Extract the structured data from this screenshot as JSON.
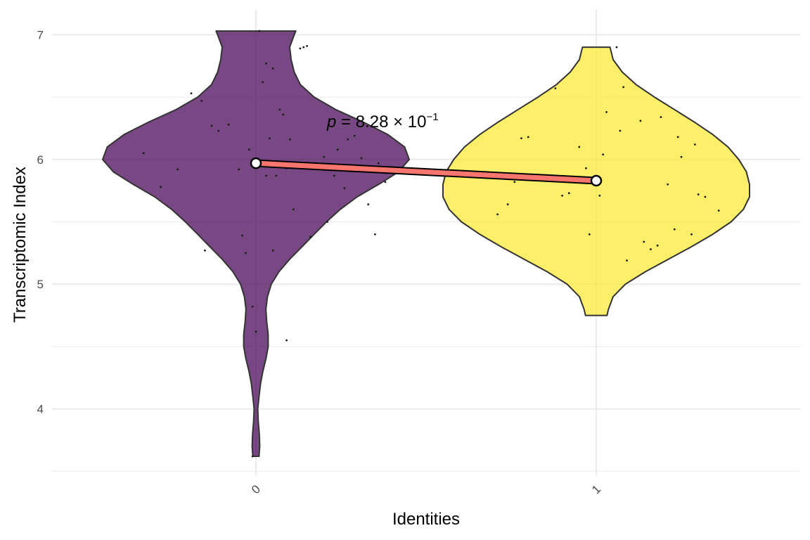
{
  "chart_data": {
    "type": "violin",
    "xlabel": "Identities",
    "ylabel": "Transcriptomic Index",
    "categories": [
      "0",
      "1"
    ],
    "ylim": [
      3.5,
      7.1
    ],
    "yticks": [
      4,
      5,
      6,
      7
    ],
    "y_minor_ticks": [
      3.5,
      4.5,
      5.5,
      6.5
    ],
    "grid": true,
    "x_tick_rotation": -45,
    "annotation": {
      "p_mantissa": "8.28",
      "p_exponent": "−1"
    },
    "colors": {
      "0": "#440154",
      "1": "#FDE725",
      "mean_line": "#F8766D",
      "grid": "#ebebeb"
    },
    "series": [
      {
        "name": "0",
        "mean": 5.97,
        "min": 3.62,
        "max": 7.03,
        "density": [
          [
            3.62,
            0.02
          ],
          [
            3.7,
            0.025
          ],
          [
            3.8,
            0.022
          ],
          [
            3.9,
            0.015
          ],
          [
            4.0,
            0.012
          ],
          [
            4.1,
            0.02
          ],
          [
            4.2,
            0.03
          ],
          [
            4.3,
            0.045
          ],
          [
            4.4,
            0.065
          ],
          [
            4.5,
            0.08
          ],
          [
            4.6,
            0.08
          ],
          [
            4.7,
            0.07
          ],
          [
            4.8,
            0.065
          ],
          [
            4.9,
            0.075
          ],
          [
            5.0,
            0.1
          ],
          [
            5.1,
            0.15
          ],
          [
            5.2,
            0.22
          ],
          [
            5.3,
            0.3
          ],
          [
            5.4,
            0.38
          ],
          [
            5.5,
            0.46
          ],
          [
            5.6,
            0.55
          ],
          [
            5.7,
            0.66
          ],
          [
            5.8,
            0.8
          ],
          [
            5.9,
            0.93
          ],
          [
            6.0,
            1.0
          ],
          [
            6.1,
            0.97
          ],
          [
            6.2,
            0.86
          ],
          [
            6.3,
            0.7
          ],
          [
            6.4,
            0.52
          ],
          [
            6.5,
            0.38
          ],
          [
            6.6,
            0.29
          ],
          [
            6.7,
            0.25
          ],
          [
            6.8,
            0.23
          ],
          [
            6.9,
            0.22
          ],
          [
            7.0,
            0.25
          ],
          [
            7.03,
            0.26
          ]
        ],
        "points": [
          [
            -0.33,
            6.05
          ],
          [
            -0.28,
            5.78
          ],
          [
            -0.23,
            5.92
          ],
          [
            -0.19,
            6.53
          ],
          [
            -0.16,
            6.47
          ],
          [
            -0.13,
            6.27
          ],
          [
            -0.11,
            6.23
          ],
          [
            -0.08,
            6.28
          ],
          [
            -0.05,
            5.92
          ],
          [
            -0.04,
            5.39
          ],
          [
            -0.03,
            5.25
          ],
          [
            -0.02,
            6.08
          ],
          [
            -0.01,
            4.82
          ],
          [
            0.01,
            7.03
          ],
          [
            0.03,
            6.77
          ],
          [
            0.05,
            6.73
          ],
          [
            0.07,
            6.4
          ],
          [
            0.02,
            6.62
          ],
          [
            0.04,
            6.17
          ],
          [
            0.03,
            5.87
          ],
          [
            0.0,
            4.62
          ],
          [
            0.06,
            5.87
          ],
          [
            0.08,
            6.36
          ],
          [
            0.09,
            5.93
          ],
          [
            0.1,
            6.16
          ],
          [
            0.11,
            5.6
          ],
          [
            0.13,
            6.89
          ],
          [
            0.14,
            6.9
          ],
          [
            0.15,
            6.91
          ],
          [
            0.16,
            5.38
          ],
          [
            0.18,
            5.97
          ],
          [
            0.2,
            6.02
          ],
          [
            0.21,
            5.5
          ],
          [
            0.23,
            5.87
          ],
          [
            0.24,
            6.08
          ],
          [
            0.26,
            5.77
          ],
          [
            0.27,
            6.16
          ],
          [
            0.29,
            6.19
          ],
          [
            0.31,
            6.01
          ],
          [
            0.33,
            5.64
          ],
          [
            0.35,
            5.4
          ],
          [
            0.36,
            5.97
          ],
          [
            0.38,
            5.82
          ],
          [
            -0.15,
            5.27
          ],
          [
            0.05,
            5.27
          ],
          [
            0.09,
            4.55
          ],
          [
            -0.01,
            3.62
          ]
        ]
      },
      {
        "name": "1",
        "mean": 5.83,
        "min": 4.75,
        "max": 6.9,
        "density": [
          [
            4.75,
            0.07
          ],
          [
            4.8,
            0.08
          ],
          [
            4.9,
            0.11
          ],
          [
            5.0,
            0.19
          ],
          [
            5.1,
            0.32
          ],
          [
            5.2,
            0.47
          ],
          [
            5.3,
            0.62
          ],
          [
            5.4,
            0.76
          ],
          [
            5.5,
            0.88
          ],
          [
            5.6,
            0.96
          ],
          [
            5.7,
            1.0
          ],
          [
            5.8,
            1.0
          ],
          [
            5.9,
            0.98
          ],
          [
            6.0,
            0.93
          ],
          [
            6.1,
            0.86
          ],
          [
            6.2,
            0.76
          ],
          [
            6.3,
            0.64
          ],
          [
            6.4,
            0.51
          ],
          [
            6.5,
            0.38
          ],
          [
            6.6,
            0.26
          ],
          [
            6.7,
            0.17
          ],
          [
            6.8,
            0.11
          ],
          [
            6.9,
            0.09
          ]
        ],
        "points": [
          [
            -0.29,
            5.56
          ],
          [
            -0.26,
            5.64
          ],
          [
            -0.24,
            5.82
          ],
          [
            -0.22,
            6.17
          ],
          [
            -0.2,
            6.18
          ],
          [
            -0.12,
            6.57
          ],
          [
            -0.1,
            5.71
          ],
          [
            -0.08,
            5.73
          ],
          [
            -0.05,
            6.1
          ],
          [
            -0.03,
            5.93
          ],
          [
            -0.02,
            5.4
          ],
          [
            0.01,
            5.71
          ],
          [
            0.02,
            6.04
          ],
          [
            0.03,
            6.38
          ],
          [
            0.06,
            6.9
          ],
          [
            0.07,
            6.23
          ],
          [
            0.08,
            6.58
          ],
          [
            0.09,
            5.19
          ],
          [
            0.13,
            6.31
          ],
          [
            0.14,
            5.34
          ],
          [
            0.16,
            5.28
          ],
          [
            0.18,
            5.31
          ],
          [
            0.19,
            6.34
          ],
          [
            0.21,
            5.8
          ],
          [
            0.23,
            5.44
          ],
          [
            0.24,
            6.18
          ],
          [
            0.25,
            6.02
          ],
          [
            0.28,
            5.4
          ],
          [
            0.29,
            6.12
          ],
          [
            0.3,
            5.72
          ],
          [
            0.32,
            5.7
          ],
          [
            0.36,
            5.59
          ]
        ]
      }
    ]
  }
}
